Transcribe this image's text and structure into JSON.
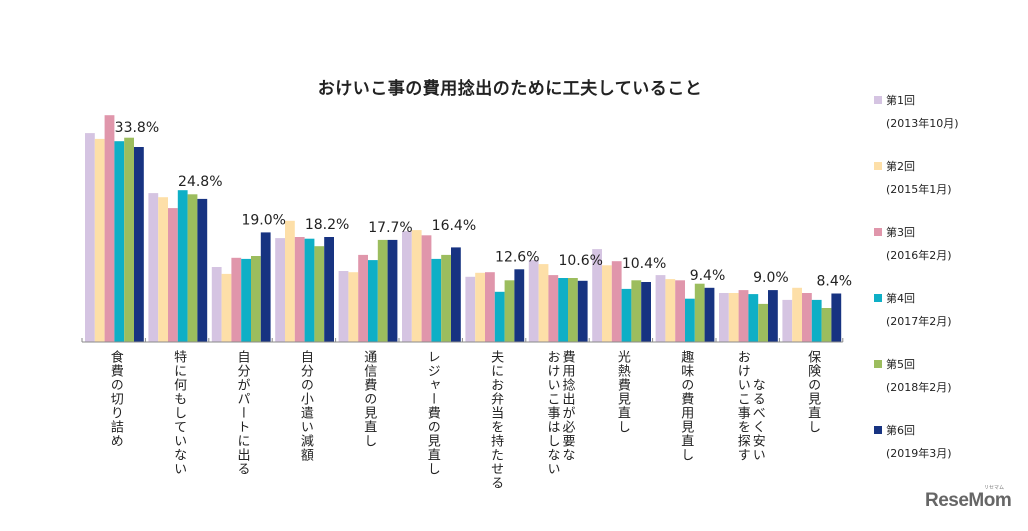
{
  "chart_data": {
    "type": "bar",
    "title": "おけいこ事の費用捻出のために工夫していること",
    "xlabel": "",
    "ylabel": "",
    "ylim": [
      0,
      40
    ],
    "grid": false,
    "legend_position": "right",
    "categories": [
      [
        "食費の切り詰め"
      ],
      [
        "特に何もしていない"
      ],
      [
        "自分がパートに出る"
      ],
      [
        "自分の小遣い減額"
      ],
      [
        "通信費の見直し"
      ],
      [
        "レジャー費の見直し"
      ],
      [
        "夫にお弁当を持たせる"
      ],
      [
        "費用捻出が必要な",
        "おけいこ事はしない"
      ],
      [
        "光熱費見直し"
      ],
      [
        "趣味の費用見直し"
      ],
      [
        "なるべく安い",
        "おけいこ事を探す"
      ],
      [
        "保険の見直し"
      ]
    ],
    "data_labels": [
      "33.8%",
      "24.8%",
      "19.0%",
      "18.2%",
      "17.7%",
      "16.4%",
      "12.6%",
      "10.6%",
      "10.4%",
      "9.4%",
      "9.0%",
      "8.4%"
    ],
    "series": [
      {
        "name": "第1回",
        "date": "(2013年10月)",
        "color": "#D5C4E2",
        "values": [
          36.2,
          25.8,
          13.0,
          18.0,
          12.3,
          19.2,
          11.3,
          14.2,
          16.1,
          11.6,
          8.5,
          7.3
        ]
      },
      {
        "name": "第2回",
        "date": "(2015年1月)",
        "color": "#FDDFA8",
        "values": [
          35.2,
          25.1,
          11.8,
          21.0,
          12.1,
          19.4,
          12.0,
          13.5,
          13.3,
          10.9,
          8.5,
          9.4
        ]
      },
      {
        "name": "第3回",
        "date": "(2016年2月)",
        "color": "#E096AB",
        "values": [
          39.3,
          23.2,
          14.6,
          18.2,
          15.1,
          18.5,
          12.1,
          11.6,
          14.0,
          10.7,
          9.0,
          8.5
        ]
      },
      {
        "name": "第4回",
        "date": "(2017年2月)",
        "color": "#0EAFC6",
        "values": [
          34.8,
          26.3,
          14.4,
          17.9,
          14.2,
          14.4,
          8.7,
          11.1,
          9.2,
          7.5,
          8.3,
          7.3
        ]
      },
      {
        "name": "第5回",
        "date": "(2018年2月)",
        "color": "#9CBD5E",
        "values": [
          35.4,
          25.6,
          14.9,
          16.6,
          17.7,
          15.1,
          10.7,
          11.1,
          10.7,
          10.1,
          6.6,
          5.9
        ]
      },
      {
        "name": "第6回",
        "date": "(2019年3月)",
        "color": "#173381",
        "values": [
          33.8,
          24.8,
          19.0,
          18.2,
          17.7,
          16.4,
          12.6,
          10.6,
          10.4,
          9.4,
          9.0,
          8.4
        ]
      }
    ]
  },
  "branding": {
    "logo": "ReseMom",
    "logo_ruby": "リセマム"
  }
}
